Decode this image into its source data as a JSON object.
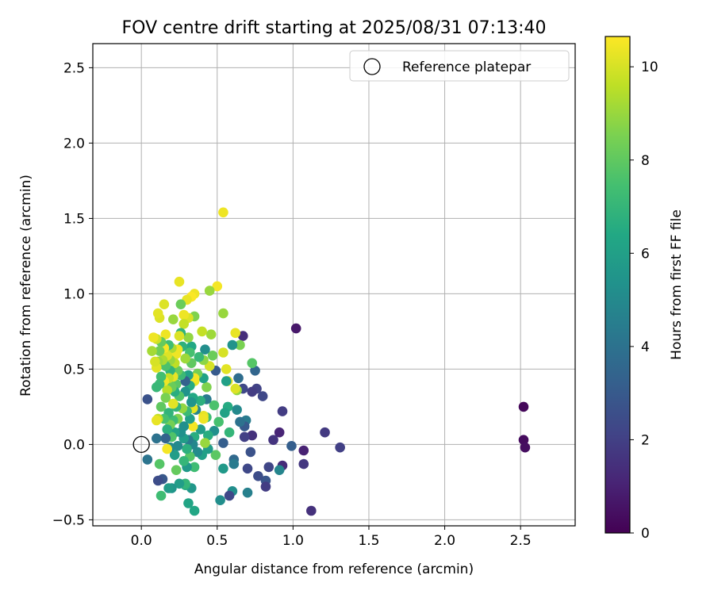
{
  "chart_data": {
    "type": "scatter",
    "title": "FOV centre drift starting at 2025/08/31 07:13:40",
    "xlabel": "Angular distance from reference (arcmin)",
    "ylabel": "Rotation from reference (arcmin)",
    "xlim": [
      -0.32,
      2.86
    ],
    "ylim": [
      -0.54,
      2.66
    ],
    "xticks": [
      0.0,
      0.5,
      1.0,
      1.5,
      2.0,
      2.5
    ],
    "yticks": [
      -0.5,
      0.0,
      0.5,
      1.0,
      1.5,
      2.0,
      2.5
    ],
    "xtick_labels": [
      "0.0",
      "0.5",
      "1.0",
      "1.5",
      "2.0",
      "2.5"
    ],
    "ytick_labels": [
      "−0.5",
      "0.0",
      "0.5",
      "1.0",
      "1.5",
      "2.0",
      "2.5"
    ],
    "grid": true,
    "legend": {
      "position": "top-right",
      "entries": [
        "Reference platepar"
      ]
    },
    "reference_point": {
      "x": 0.0,
      "y": 0.0
    },
    "colorbar": {
      "label": "Hours from first FF file",
      "range": [
        0,
        10.65
      ],
      "ticks": [
        0,
        2,
        4,
        6,
        8,
        10
      ],
      "tick_labels": [
        "0",
        "2",
        "4",
        "6",
        "8",
        "10"
      ],
      "colormap": "viridis"
    },
    "points": [
      {
        "x": 2.52,
        "y": 0.25,
        "c": 0.2
      },
      {
        "x": 2.52,
        "y": 0.03,
        "c": 0.3
      },
      {
        "x": 2.53,
        "y": -0.02,
        "c": 0.4
      },
      {
        "x": 1.02,
        "y": 0.77,
        "c": 0.7
      },
      {
        "x": 1.07,
        "y": -0.04,
        "c": 1.0
      },
      {
        "x": 1.12,
        "y": -0.44,
        "c": 1.5
      },
      {
        "x": 1.21,
        "y": 0.08,
        "c": 1.8
      },
      {
        "x": 1.31,
        "y": -0.02,
        "c": 2.0
      },
      {
        "x": 1.07,
        "y": -0.13,
        "c": 1.7
      },
      {
        "x": 0.93,
        "y": -0.14,
        "c": 1.3
      },
      {
        "x": 0.91,
        "y": 0.08,
        "c": 1.1
      },
      {
        "x": 0.87,
        "y": 0.03,
        "c": 1.6
      },
      {
        "x": 0.93,
        "y": 0.22,
        "c": 1.9
      },
      {
        "x": 0.99,
        "y": -0.01,
        "c": 3.2
      },
      {
        "x": 0.91,
        "y": -0.17,
        "c": 4.8
      },
      {
        "x": 0.84,
        "y": -0.15,
        "c": 2.2
      },
      {
        "x": 0.82,
        "y": -0.24,
        "c": 2.8
      },
      {
        "x": 0.82,
        "y": -0.28,
        "c": 1.9
      },
      {
        "x": 0.77,
        "y": -0.21,
        "c": 2.5
      },
      {
        "x": 0.8,
        "y": 0.32,
        "c": 2.3
      },
      {
        "x": 0.76,
        "y": 0.37,
        "c": 2.1
      },
      {
        "x": 0.75,
        "y": 0.49,
        "c": 3.5
      },
      {
        "x": 0.73,
        "y": 0.54,
        "c": 7.8
      },
      {
        "x": 0.73,
        "y": 0.35,
        "c": 1.9
      },
      {
        "x": 0.73,
        "y": 0.06,
        "c": 1.5
      },
      {
        "x": 0.72,
        "y": -0.05,
        "c": 2.7
      },
      {
        "x": 0.7,
        "y": -0.16,
        "c": 2.3
      },
      {
        "x": 0.7,
        "y": -0.32,
        "c": 4.6
      },
      {
        "x": 0.69,
        "y": 0.16,
        "c": 4.4
      },
      {
        "x": 0.68,
        "y": 0.05,
        "c": 2.0
      },
      {
        "x": 0.68,
        "y": 0.12,
        "c": 3.0
      },
      {
        "x": 0.67,
        "y": 0.72,
        "c": 1.4
      },
      {
        "x": 0.67,
        "y": 0.37,
        "c": 2.3
      },
      {
        "x": 0.65,
        "y": 0.66,
        "c": 8.5
      },
      {
        "x": 0.64,
        "y": 0.44,
        "c": 3.8
      },
      {
        "x": 0.63,
        "y": 0.23,
        "c": 5.0
      },
      {
        "x": 0.63,
        "y": 0.36,
        "c": 8.9
      },
      {
        "x": 0.65,
        "y": 0.15,
        "c": 4.0
      },
      {
        "x": 0.62,
        "y": 0.74,
        "c": 10.3
      },
      {
        "x": 0.62,
        "y": 0.37,
        "c": 10.1
      },
      {
        "x": 0.6,
        "y": 0.66,
        "c": 5.4
      },
      {
        "x": 0.61,
        "y": -0.1,
        "c": 3.6
      },
      {
        "x": 0.61,
        "y": -0.13,
        "c": 4.4
      },
      {
        "x": 0.6,
        "y": -0.31,
        "c": 5.2
      },
      {
        "x": 0.58,
        "y": -0.34,
        "c": 2.3
      },
      {
        "x": 0.58,
        "y": 0.08,
        "c": 7.0
      },
      {
        "x": 0.57,
        "y": 0.25,
        "c": 6.5
      },
      {
        "x": 0.57,
        "y": 0.42,
        "c": 10.4
      },
      {
        "x": 0.56,
        "y": 0.5,
        "c": 10.2
      },
      {
        "x": 0.56,
        "y": 0.42,
        "c": 6.0
      },
      {
        "x": 0.55,
        "y": 0.21,
        "c": 6.1
      },
      {
        "x": 0.54,
        "y": 1.54,
        "c": 10.4
      },
      {
        "x": 0.54,
        "y": 0.87,
        "c": 9.0
      },
      {
        "x": 0.54,
        "y": 0.61,
        "c": 10.0
      },
      {
        "x": 0.54,
        "y": 0.01,
        "c": 3.2
      },
      {
        "x": 0.54,
        "y": -0.16,
        "c": 5.7
      },
      {
        "x": 0.52,
        "y": -0.37,
        "c": 5.2
      },
      {
        "x": 0.51,
        "y": 0.15,
        "c": 7.5
      },
      {
        "x": 0.5,
        "y": 1.05,
        "c": 10.5
      },
      {
        "x": 0.49,
        "y": 0.49,
        "c": 3.0
      },
      {
        "x": 0.49,
        "y": -0.07,
        "c": 7.9
      },
      {
        "x": 0.48,
        "y": 0.09,
        "c": 5.3
      },
      {
        "x": 0.48,
        "y": 0.26,
        "c": 7.6
      },
      {
        "x": 0.47,
        "y": 0.59,
        "c": 8.2
      },
      {
        "x": 0.46,
        "y": 0.73,
        "c": 9.1
      },
      {
        "x": 0.45,
        "y": 1.02,
        "c": 9.0
      },
      {
        "x": 0.45,
        "y": 0.52,
        "c": 10.0
      },
      {
        "x": 0.44,
        "y": 0.06,
        "c": 6.6
      },
      {
        "x": 0.44,
        "y": -0.03,
        "c": 5.9
      },
      {
        "x": 0.43,
        "y": 0.3,
        "c": 4.4
      },
      {
        "x": 0.43,
        "y": 0.18,
        "c": 7.3
      },
      {
        "x": 0.43,
        "y": 0.38,
        "c": 8.6
      },
      {
        "x": 0.42,
        "y": 0.01,
        "c": 9.0
      },
      {
        "x": 0.42,
        "y": 0.63,
        "c": 5.2
      },
      {
        "x": 0.41,
        "y": 0.56,
        "c": 8.8
      },
      {
        "x": 0.41,
        "y": 0.44,
        "c": 6.1
      },
      {
        "x": 0.41,
        "y": 0.19,
        "c": 10.3
      },
      {
        "x": 0.41,
        "y": 0.17,
        "c": 10.4
      },
      {
        "x": 0.4,
        "y": 0.75,
        "c": 9.7
      },
      {
        "x": 0.4,
        "y": -0.07,
        "c": 6.0
      },
      {
        "x": 0.39,
        "y": 0.1,
        "c": 5.9
      },
      {
        "x": 0.39,
        "y": 0.29,
        "c": 6.7
      },
      {
        "x": 0.38,
        "y": 0.58,
        "c": 7.1
      },
      {
        "x": 0.37,
        "y": 0.47,
        "c": 8.4
      },
      {
        "x": 0.37,
        "y": -0.05,
        "c": 5.1
      },
      {
        "x": 0.36,
        "y": 0.23,
        "c": 4.8
      },
      {
        "x": 0.35,
        "y": 1.0,
        "c": 10.4
      },
      {
        "x": 0.35,
        "y": 0.85,
        "c": 8.6
      },
      {
        "x": 0.35,
        "y": 0.42,
        "c": 10.3
      },
      {
        "x": 0.35,
        "y": 0.44,
        "c": 10.5
      },
      {
        "x": 0.35,
        "y": 0.05,
        "c": 6.6
      },
      {
        "x": 0.35,
        "y": -0.15,
        "c": 7.3
      },
      {
        "x": 0.35,
        "y": -0.44,
        "c": 6.3
      },
      {
        "x": 0.34,
        "y": 0.12,
        "c": 10.5
      },
      {
        "x": 0.34,
        "y": 0.31,
        "c": 6.4
      },
      {
        "x": 0.34,
        "y": 0.24,
        "c": 10.2
      },
      {
        "x": 0.34,
        "y": 0.0,
        "c": 4.9
      },
      {
        "x": 0.33,
        "y": 0.98,
        "c": 10.6
      },
      {
        "x": 0.33,
        "y": 0.65,
        "c": 6.4
      },
      {
        "x": 0.33,
        "y": 0.54,
        "c": 8.0
      },
      {
        "x": 0.33,
        "y": 0.28,
        "c": 5.5
      },
      {
        "x": 0.33,
        "y": -0.29,
        "c": 5.6
      },
      {
        "x": 0.32,
        "y": 0.61,
        "c": 7.5
      },
      {
        "x": 0.32,
        "y": 0.39,
        "c": 6.5
      },
      {
        "x": 0.32,
        "y": 0.17,
        "c": 6.0
      },
      {
        "x": 0.32,
        "y": -0.08,
        "c": 7.8
      },
      {
        "x": 0.31,
        "y": 0.84,
        "c": 10.1
      },
      {
        "x": 0.31,
        "y": 0.71,
        "c": 8.9
      },
      {
        "x": 0.31,
        "y": 0.46,
        "c": 6.1
      },
      {
        "x": 0.31,
        "y": 0.03,
        "c": 4.4
      },
      {
        "x": 0.31,
        "y": -0.39,
        "c": 6.2
      },
      {
        "x": 0.3,
        "y": 0.96,
        "c": 10.3
      },
      {
        "x": 0.3,
        "y": 0.22,
        "c": 7.2
      },
      {
        "x": 0.3,
        "y": -0.03,
        "c": 6.7
      },
      {
        "x": 0.3,
        "y": -0.15,
        "c": 5.7
      },
      {
        "x": 0.29,
        "y": 0.57,
        "c": 9.1
      },
      {
        "x": 0.29,
        "y": 0.42,
        "c": 3.3
      },
      {
        "x": 0.29,
        "y": 0.35,
        "c": 5.4
      },
      {
        "x": 0.29,
        "y": -0.27,
        "c": 6.6
      },
      {
        "x": 0.29,
        "y": -0.26,
        "c": 7.0
      },
      {
        "x": 0.28,
        "y": 0.86,
        "c": 10.4
      },
      {
        "x": 0.28,
        "y": 0.8,
        "c": 9.7
      },
      {
        "x": 0.28,
        "y": 0.12,
        "c": 5.3
      },
      {
        "x": 0.28,
        "y": 0.04,
        "c": 5.9
      },
      {
        "x": 0.28,
        "y": -0.11,
        "c": 7.0
      },
      {
        "x": 0.27,
        "y": 0.65,
        "c": 6.8
      },
      {
        "x": 0.27,
        "y": 0.24,
        "c": 8.9
      },
      {
        "x": 0.26,
        "y": 0.93,
        "c": 8.2
      },
      {
        "x": 0.26,
        "y": 0.74,
        "c": 6.9
      },
      {
        "x": 0.26,
        "y": 0.46,
        "c": 7.2
      },
      {
        "x": 0.26,
        "y": 0.08,
        "c": 5.3
      },
      {
        "x": 0.25,
        "y": 1.08,
        "c": 10.3
      },
      {
        "x": 0.25,
        "y": 0.72,
        "c": 10.1
      },
      {
        "x": 0.25,
        "y": 0.32,
        "c": 7.7
      },
      {
        "x": 0.25,
        "y": -0.26,
        "c": 5.9
      },
      {
        "x": 0.24,
        "y": 0.63,
        "c": 10.4
      },
      {
        "x": 0.24,
        "y": 0.49,
        "c": 8.1
      },
      {
        "x": 0.24,
        "y": 0.17,
        "c": 8.6
      },
      {
        "x": 0.24,
        "y": -0.01,
        "c": 5.0
      },
      {
        "x": 0.23,
        "y": 0.6,
        "c": 10.4
      },
      {
        "x": 0.23,
        "y": 0.4,
        "c": 7.9
      },
      {
        "x": 0.23,
        "y": 0.25,
        "c": 7.0
      },
      {
        "x": 0.23,
        "y": -0.17,
        "c": 8.1
      },
      {
        "x": 0.22,
        "y": 0.54,
        "c": 9.6
      },
      {
        "x": 0.22,
        "y": 0.35,
        "c": 6.6
      },
      {
        "x": 0.22,
        "y": 0.08,
        "c": 6.1
      },
      {
        "x": 0.22,
        "y": -0.07,
        "c": 5.9
      },
      {
        "x": 0.21,
        "y": 0.83,
        "c": 9.0
      },
      {
        "x": 0.21,
        "y": 0.45,
        "c": 10.3
      },
      {
        "x": 0.21,
        "y": 0.27,
        "c": 10.2
      },
      {
        "x": 0.21,
        "y": 0.16,
        "c": 7.3
      },
      {
        "x": 0.2,
        "y": 0.64,
        "c": 9.3
      },
      {
        "x": 0.2,
        "y": 0.38,
        "c": 8.2
      },
      {
        "x": 0.2,
        "y": 0.05,
        "c": 7.7
      },
      {
        "x": 0.2,
        "y": -0.29,
        "c": 5.5
      },
      {
        "x": 0.19,
        "y": 0.56,
        "c": 9.0
      },
      {
        "x": 0.19,
        "y": 0.49,
        "c": 6.9
      },
      {
        "x": 0.19,
        "y": 0.13,
        "c": 8.4
      },
      {
        "x": 0.19,
        "y": -0.02,
        "c": 5.0
      },
      {
        "x": 0.18,
        "y": 0.66,
        "c": 7.3
      },
      {
        "x": 0.18,
        "y": 0.44,
        "c": 9.7
      },
      {
        "x": 0.18,
        "y": 0.21,
        "c": 6.9
      },
      {
        "x": 0.18,
        "y": -0.29,
        "c": 5.8
      },
      {
        "x": 0.17,
        "y": 0.59,
        "c": 10.1
      },
      {
        "x": 0.17,
        "y": 0.36,
        "c": 9.5
      },
      {
        "x": 0.17,
        "y": 0.1,
        "c": 6.7
      },
      {
        "x": 0.17,
        "y": -0.03,
        "c": 10.5
      },
      {
        "x": 0.16,
        "y": 0.73,
        "c": 10.4
      },
      {
        "x": 0.16,
        "y": 0.52,
        "c": 7.6
      },
      {
        "x": 0.16,
        "y": 0.31,
        "c": 8.5
      },
      {
        "x": 0.16,
        "y": 0.04,
        "c": 3.4
      },
      {
        "x": 0.15,
        "y": 0.93,
        "c": 10.1
      },
      {
        "x": 0.15,
        "y": 0.64,
        "c": 10.5
      },
      {
        "x": 0.15,
        "y": 0.42,
        "c": 10.4
      },
      {
        "x": 0.15,
        "y": 0.17,
        "c": 7.5
      },
      {
        "x": 0.14,
        "y": 0.56,
        "c": 9.3
      },
      {
        "x": 0.14,
        "y": -0.23,
        "c": 2.9
      },
      {
        "x": 0.13,
        "y": 0.68,
        "c": 8.1
      },
      {
        "x": 0.13,
        "y": 0.45,
        "c": 7.4
      },
      {
        "x": 0.13,
        "y": 0.25,
        "c": 8.0
      },
      {
        "x": 0.13,
        "y": -0.34,
        "c": 7.3
      },
      {
        "x": 0.12,
        "y": 0.84,
        "c": 10.1
      },
      {
        "x": 0.12,
        "y": 0.62,
        "c": 8.3
      },
      {
        "x": 0.12,
        "y": 0.4,
        "c": 7.2
      },
      {
        "x": 0.12,
        "y": -0.13,
        "c": 7.8
      },
      {
        "x": 0.11,
        "y": 0.87,
        "c": 10.2
      },
      {
        "x": 0.11,
        "y": 0.55,
        "c": 9.0
      },
      {
        "x": 0.11,
        "y": 0.17,
        "c": 9.7
      },
      {
        "x": 0.11,
        "y": -0.24,
        "c": 2.5
      },
      {
        "x": 0.1,
        "y": 0.7,
        "c": 9.9
      },
      {
        "x": 0.1,
        "y": 0.51,
        "c": 10.2
      },
      {
        "x": 0.1,
        "y": 0.38,
        "c": 7.1
      },
      {
        "x": 0.1,
        "y": 0.16,
        "c": 10.3
      },
      {
        "x": 0.1,
        "y": 0.04,
        "c": 4.0
      },
      {
        "x": 0.09,
        "y": 0.55,
        "c": 10.0
      },
      {
        "x": 0.08,
        "y": 0.71,
        "c": 10.4
      },
      {
        "x": 0.07,
        "y": 0.62,
        "c": 9.2
      },
      {
        "x": 0.04,
        "y": 0.3,
        "c": 2.7
      },
      {
        "x": 0.04,
        "y": -0.1,
        "c": 4.1
      }
    ]
  }
}
